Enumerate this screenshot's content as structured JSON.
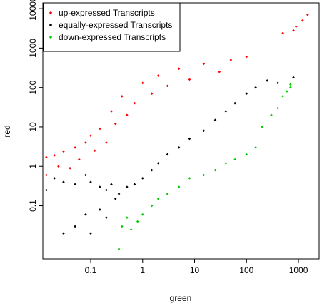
{
  "chart_data": {
    "type": "scatter",
    "xlabel": "green",
    "ylabel": "red",
    "x_scale": "log",
    "y_scale": "log",
    "xlim": [
      0.012,
      2500
    ],
    "ylim": [
      0.0045,
      14000
    ],
    "x_ticks": [
      {
        "value": 0.1,
        "label": "0.1"
      },
      {
        "value": 1,
        "label": "1"
      },
      {
        "value": 10,
        "label": "10"
      },
      {
        "value": 100,
        "label": "100"
      },
      {
        "value": 1000,
        "label": "1000"
      }
    ],
    "y_ticks": [
      {
        "value": 0.1,
        "label": "0.1"
      },
      {
        "value": 1,
        "label": "1"
      },
      {
        "value": 10,
        "label": "10"
      },
      {
        "value": 100,
        "label": "100"
      },
      {
        "value": 1000,
        "label": "1000"
      },
      {
        "value": 10000,
        "label": "10000"
      }
    ],
    "grid": false,
    "legend": {
      "position": "top-left"
    },
    "series": [
      {
        "name": "up-expressed Transcripts",
        "color": "#ff0000",
        "points": [
          [
            0.014,
            1.7
          ],
          [
            0.014,
            0.6
          ],
          [
            0.02,
            1.9
          ],
          [
            0.024,
            1.0
          ],
          [
            0.03,
            2.4
          ],
          [
            0.04,
            0.9
          ],
          [
            0.05,
            3.0
          ],
          [
            0.06,
            1.5
          ],
          [
            0.08,
            4.0
          ],
          [
            0.1,
            6.0
          ],
          [
            0.12,
            2.5
          ],
          [
            0.15,
            9.0
          ],
          [
            0.2,
            4.0
          ],
          [
            0.25,
            25
          ],
          [
            0.3,
            12
          ],
          [
            0.4,
            60
          ],
          [
            0.5,
            20
          ],
          [
            0.7,
            40
          ],
          [
            1.0,
            130
          ],
          [
            1.5,
            70
          ],
          [
            2,
            200
          ],
          [
            3,
            110
          ],
          [
            5,
            300
          ],
          [
            8,
            160
          ],
          [
            15,
            400
          ],
          [
            30,
            250
          ],
          [
            50,
            500
          ],
          [
            100,
            600
          ],
          [
            1500,
            7000
          ],
          [
            1200,
            5000
          ],
          [
            900,
            3500
          ],
          [
            800,
            2800
          ],
          [
            500,
            2400
          ]
        ]
      },
      {
        "name": "equally-expressed Transcripts",
        "color": "#000000",
        "points": [
          [
            0.014,
            0.25
          ],
          [
            0.02,
            0.5
          ],
          [
            0.03,
            0.4
          ],
          [
            0.05,
            0.35
          ],
          [
            0.08,
            0.6
          ],
          [
            0.1,
            0.4
          ],
          [
            0.15,
            0.3
          ],
          [
            0.2,
            0.25
          ],
          [
            0.25,
            0.35
          ],
          [
            0.3,
            0.15
          ],
          [
            0.35,
            0.2
          ],
          [
            0.5,
            0.3
          ],
          [
            0.7,
            0.35
          ],
          [
            1.0,
            0.5
          ],
          [
            1.5,
            0.8
          ],
          [
            2,
            1.2
          ],
          [
            3,
            2.0
          ],
          [
            5,
            3.0
          ],
          [
            8,
            5.0
          ],
          [
            15,
            8.0
          ],
          [
            25,
            15
          ],
          [
            40,
            25
          ],
          [
            60,
            40
          ],
          [
            100,
            70
          ],
          [
            150,
            100
          ],
          [
            250,
            150
          ],
          [
            400,
            130
          ],
          [
            800,
            180
          ],
          [
            0.03,
            0.02
          ],
          [
            0.05,
            0.03
          ],
          [
            0.1,
            0.02
          ],
          [
            0.08,
            0.06
          ],
          [
            0.15,
            0.08
          ],
          [
            0.2,
            0.05
          ]
        ]
      },
      {
        "name": "down-expressed Transcripts",
        "color": "#00cc00",
        "points": [
          [
            0.35,
            0.008
          ],
          [
            0.4,
            0.03
          ],
          [
            0.5,
            0.05
          ],
          [
            0.6,
            0.025
          ],
          [
            0.8,
            0.04
          ],
          [
            1.0,
            0.06
          ],
          [
            1.5,
            0.1
          ],
          [
            2,
            0.15
          ],
          [
            3,
            0.2
          ],
          [
            5,
            0.3
          ],
          [
            8,
            0.5
          ],
          [
            15,
            0.6
          ],
          [
            25,
            0.8
          ],
          [
            40,
            1.2
          ],
          [
            60,
            1.5
          ],
          [
            100,
            2.0
          ],
          [
            150,
            3.0
          ],
          [
            200,
            10
          ],
          [
            300,
            20
          ],
          [
            400,
            30
          ],
          [
            500,
            60
          ],
          [
            600,
            80
          ],
          [
            700,
            100
          ],
          [
            700,
            120
          ]
        ]
      }
    ]
  }
}
